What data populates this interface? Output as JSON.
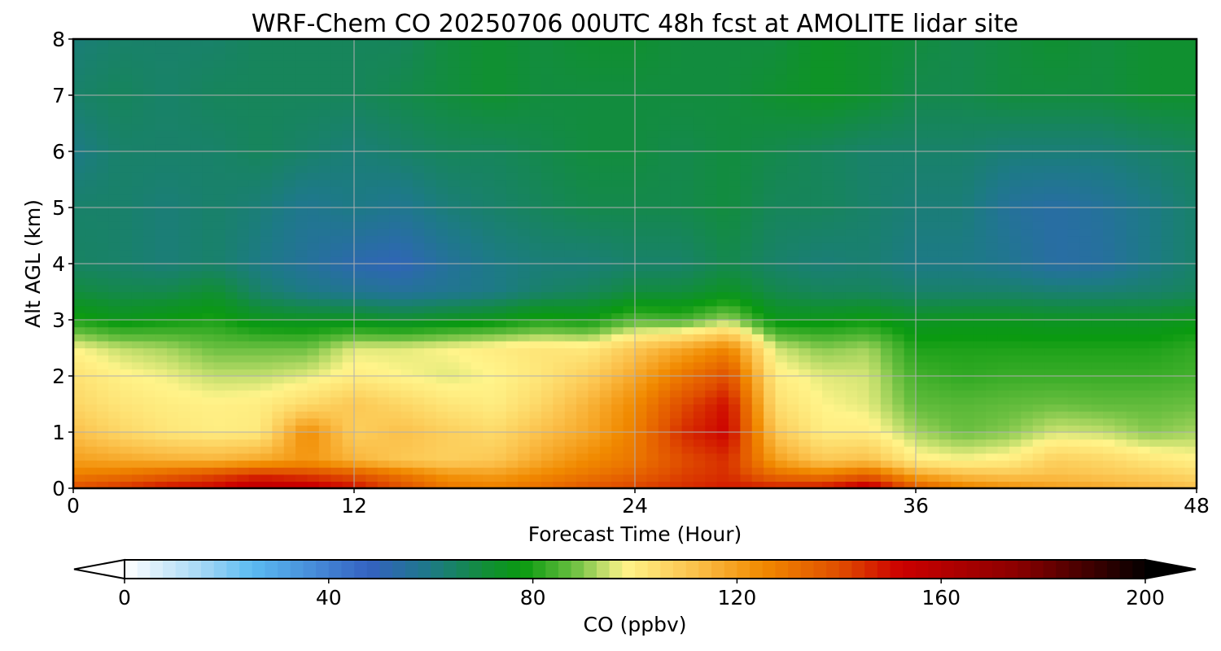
{
  "chart_data": {
    "type": "heatmap",
    "title": "WRF-Chem CO  20250706 00UTC 48h fcst at AMOLITE lidar site",
    "xlabel": "Forecast Time (Hour)",
    "ylabel": "Alt AGL (km)",
    "xlim": [
      0,
      48
    ],
    "ylim": [
      0,
      8
    ],
    "xticks": [
      "0",
      "12",
      "24",
      "36",
      "48"
    ],
    "yticks": [
      "0",
      "1",
      "2",
      "3",
      "4",
      "5",
      "6",
      "7",
      "8"
    ],
    "grid": true,
    "colorbar": {
      "label": "CO  (ppbv)",
      "range": [
        0,
        200
      ],
      "extend": "both",
      "ticks": [
        "0",
        "40",
        "80",
        "120",
        "160",
        "200"
      ],
      "stops": [
        {
          "v": 0,
          "c": "#ffffff"
        },
        {
          "v": 15,
          "c": "#a6d8f5"
        },
        {
          "v": 25,
          "c": "#5bbbf2"
        },
        {
          "v": 48,
          "c": "#3461c1"
        },
        {
          "v": 60,
          "c": "#1d7a86"
        },
        {
          "v": 72,
          "c": "#109030"
        },
        {
          "v": 78,
          "c": "#0a9a10"
        },
        {
          "v": 88,
          "c": "#6abf40"
        },
        {
          "v": 98,
          "c": "#fff48a"
        },
        {
          "v": 112,
          "c": "#fbc04a"
        },
        {
          "v": 125,
          "c": "#f18a00"
        },
        {
          "v": 140,
          "c": "#e04e00"
        },
        {
          "v": 152,
          "c": "#cc0000"
        },
        {
          "v": 175,
          "c": "#8a0000"
        },
        {
          "v": 200,
          "c": "#050000"
        }
      ]
    },
    "x": [
      0,
      2,
      4,
      6,
      8,
      10,
      12,
      14,
      16,
      18,
      20,
      22,
      24,
      26,
      28,
      30,
      32,
      34,
      36,
      38,
      40,
      42,
      44,
      46,
      48
    ],
    "y": [
      0,
      0.25,
      0.5,
      1,
      1.5,
      2,
      2.5,
      3,
      3.5,
      4,
      5,
      6,
      7,
      8
    ],
    "z": [
      [
        140,
        145,
        150,
        152,
        158,
        156,
        150,
        140,
        130,
        128,
        132,
        138,
        142,
        145,
        148,
        148,
        150,
        158,
        138,
        128,
        124,
        120,
        118,
        115,
        112
      ],
      [
        128,
        130,
        135,
        140,
        145,
        142,
        138,
        130,
        122,
        120,
        125,
        130,
        135,
        142,
        145,
        132,
        128,
        135,
        118,
        112,
        110,
        112,
        110,
        108,
        105
      ],
      [
        120,
        118,
        116,
        115,
        118,
        122,
        115,
        110,
        108,
        110,
        118,
        125,
        130,
        140,
        145,
        120,
        110,
        112,
        100,
        98,
        100,
        108,
        106,
        102,
        99
      ],
      [
        112,
        106,
        102,
        100,
        101,
        125,
        108,
        112,
        108,
        105,
        112,
        118,
        128,
        145,
        152,
        110,
        100,
        100,
        92,
        88,
        90,
        95,
        94,
        90,
        92
      ],
      [
        106,
        102,
        100,
        99,
        100,
        105,
        110,
        106,
        102,
        100,
        106,
        115,
        125,
        140,
        150,
        104,
        98,
        96,
        87,
        86,
        87,
        88,
        87,
        87,
        88
      ],
      [
        103,
        99,
        97,
        94,
        94,
        96,
        100,
        98,
        96,
        98,
        102,
        108,
        118,
        130,
        140,
        100,
        96,
        95,
        84,
        82,
        83,
        83,
        83,
        83,
        84
      ],
      [
        98,
        94,
        92,
        88,
        88,
        88,
        96,
        96,
        98,
        100,
        102,
        101,
        110,
        118,
        126,
        95,
        90,
        92,
        80,
        80,
        80,
        80,
        80,
        80,
        82
      ],
      [
        80,
        76,
        78,
        80,
        75,
        74,
        74,
        72,
        74,
        76,
        80,
        78,
        86,
        84,
        92,
        76,
        76,
        78,
        74,
        75,
        75,
        74,
        74,
        74,
        76
      ],
      [
        70,
        68,
        68,
        72,
        64,
        60,
        58,
        56,
        58,
        60,
        64,
        66,
        70,
        70,
        74,
        68,
        66,
        66,
        64,
        64,
        64,
        63,
        63,
        64,
        66
      ],
      [
        65,
        64,
        62,
        64,
        60,
        56,
        52,
        50,
        56,
        60,
        62,
        62,
        64,
        64,
        68,
        64,
        62,
        63,
        60,
        60,
        58,
        54,
        55,
        60,
        64
      ],
      [
        64,
        64,
        62,
        64,
        62,
        58,
        60,
        58,
        62,
        64,
        66,
        68,
        68,
        68,
        70,
        66,
        66,
        64,
        62,
        62,
        56,
        54,
        56,
        60,
        64
      ],
      [
        60,
        64,
        64,
        64,
        66,
        64,
        62,
        64,
        66,
        66,
        68,
        70,
        70,
        68,
        70,
        68,
        66,
        64,
        64,
        64,
        62,
        62,
        62,
        64,
        66
      ],
      [
        64,
        66,
        64,
        66,
        66,
        66,
        66,
        68,
        70,
        72,
        70,
        70,
        70,
        70,
        70,
        72,
        74,
        72,
        68,
        68,
        70,
        70,
        70,
        72,
        72
      ],
      [
        62,
        64,
        64,
        64,
        66,
        66,
        66,
        66,
        70,
        72,
        70,
        72,
        72,
        70,
        70,
        70,
        74,
        72,
        70,
        68,
        70,
        72,
        70,
        72,
        72
      ]
    ]
  }
}
